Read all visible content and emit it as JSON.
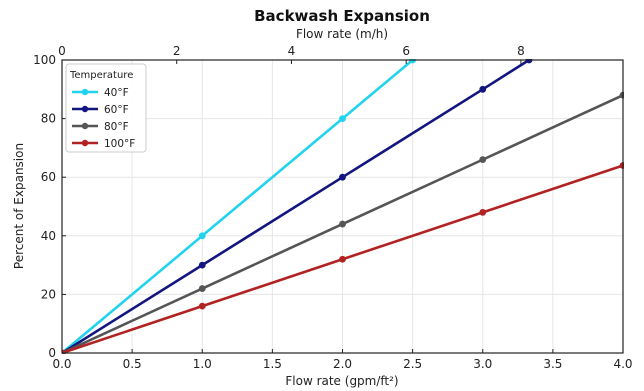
{
  "chart_data": {
    "type": "line",
    "title": "Backwash Expansion",
    "xlabel": "Flow rate (gpm/ft²)",
    "ylabel": "Percent of Expansion",
    "x2label": "Flow rate (m/h)",
    "xlim": [
      0,
      4
    ],
    "ylim": [
      0,
      100
    ],
    "x2lim": [
      0,
      9.78
    ],
    "x_ticks": [
      "0.0",
      "0.5",
      "1.0",
      "1.5",
      "2.0",
      "2.5",
      "3.0",
      "3.5",
      "4.0"
    ],
    "y_ticks": [
      "0",
      "20",
      "40",
      "60",
      "80",
      "100"
    ],
    "x2_ticks": [
      "0",
      "2",
      "4",
      "6",
      "8"
    ],
    "grid": true,
    "legend": {
      "title": "Temperature",
      "position": "top-left"
    },
    "series": [
      {
        "name": "40°F",
        "color": "#22d3ee",
        "x": [
          0,
          1,
          2,
          2.5
        ],
        "y": [
          0,
          40,
          80,
          100
        ]
      },
      {
        "name": "60°F",
        "color": "#14167f",
        "x": [
          0,
          1,
          2,
          3,
          3.33
        ],
        "y": [
          0,
          30,
          60,
          90,
          100
        ]
      },
      {
        "name": "80°F",
        "color": "#555555",
        "x": [
          0,
          1,
          2,
          3,
          4
        ],
        "y": [
          0,
          22,
          44,
          66,
          88
        ]
      },
      {
        "name": "100°F",
        "color": "#b22222",
        "x": [
          0,
          1,
          2,
          3,
          4
        ],
        "y": [
          0,
          16,
          32,
          48,
          64
        ]
      }
    ]
  }
}
